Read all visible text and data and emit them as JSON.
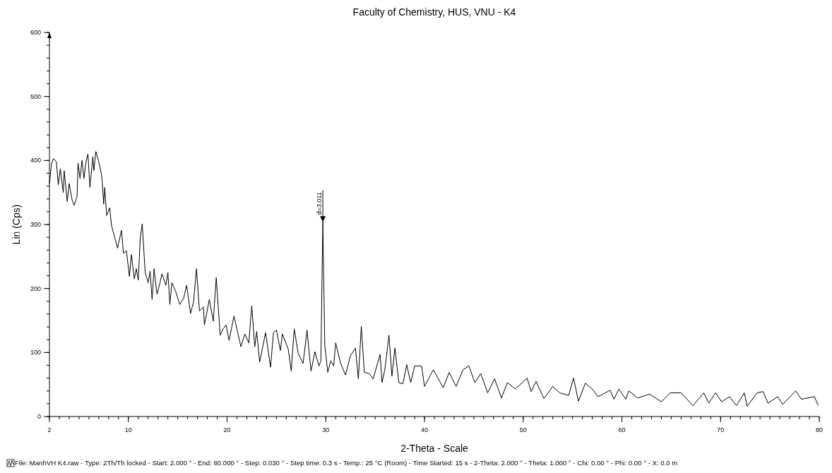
{
  "chart_data": {
    "type": "line",
    "title": "Faculty of Chemistry, HUS, VNU - K4",
    "xlabel": "2-Theta - Scale",
    "ylabel": "Lin (Cps)",
    "x": [
      2.0,
      2.2,
      2.4,
      2.7,
      2.9,
      3.1,
      3.4,
      3.5,
      3.8,
      4.0,
      4.3,
      4.5,
      4.8,
      4.9,
      5.1,
      5.3,
      5.5,
      5.7,
      5.9,
      6.1,
      6.4,
      6.5,
      6.7,
      7.0,
      7.3,
      7.5,
      7.6,
      7.8,
      8.1,
      8.3,
      8.9,
      9.3,
      9.5,
      9.8,
      10.1,
      10.3,
      10.6,
      10.8,
      11.0,
      11.2,
      11.4,
      11.7,
      12.0,
      12.2,
      12.4,
      12.6,
      12.9,
      13.2,
      13.4,
      13.8,
      14.0,
      14.2,
      14.4,
      14.8,
      15.2,
      15.6,
      15.9,
      16.3,
      16.6,
      16.9,
      17.2,
      17.6,
      17.7,
      18.2,
      18.6,
      18.9,
      19.3,
      19.6,
      19.9,
      20.2,
      20.7,
      21.4,
      21.8,
      22.2,
      22.5,
      22.8,
      23.0,
      23.3,
      23.9,
      24.4,
      24.7,
      25.0,
      25.4,
      25.6,
      26.2,
      26.5,
      26.8,
      27.2,
      27.7,
      28.1,
      28.5,
      28.9,
      29.3,
      29.5,
      29.7,
      29.9,
      30.2,
      30.5,
      30.8,
      31.0,
      31.5,
      32.0,
      32.5,
      33.0,
      33.3,
      33.6,
      33.9,
      34.4,
      34.8,
      35.5,
      35.7,
      36.0,
      36.4,
      36.7,
      37.0,
      37.4,
      37.8,
      38.2,
      38.6,
      39.0,
      39.7,
      40.0,
      40.9,
      41.9,
      42.5,
      43.2,
      43.9,
      44.5,
      45.1,
      45.7,
      46.4,
      47.1,
      47.8,
      48.4,
      49.2,
      50.4,
      50.8,
      51.3,
      52.1,
      53.0,
      53.7,
      54.6,
      55.1,
      55.6,
      56.3,
      57.0,
      57.6,
      58.8,
      59.2,
      59.7,
      60.4,
      60.7,
      61.6,
      62.8,
      64.0,
      64.9,
      66.0,
      67.2,
      68.3,
      68.8,
      69.5,
      70.1,
      70.9,
      71.6,
      72.4,
      72.7,
      73.7,
      74.3,
      74.8,
      75.8,
      76.3,
      77.6,
      78.2,
      79.5,
      79.9
    ],
    "series": [
      {
        "color": "#000000",
        "values": [
          364,
          394,
          403,
          398,
          362,
          387,
          350,
          384,
          336,
          364,
          338,
          330,
          344,
          396,
          372,
          400,
          372,
          398,
          410,
          358,
          406,
          384,
          414,
          398,
          376,
          332,
          358,
          314,
          326,
          298,
          263,
          291,
          255,
          259,
          219,
          253,
          215,
          231,
          213,
          279,
          301,
          225,
          209,
          227,
          183,
          231,
          191,
          209,
          223,
          205,
          225,
          175,
          209,
          195,
          175,
          185,
          205,
          161,
          179,
          231,
          165,
          171,
          143,
          183,
          149,
          217,
          127,
          137,
          143,
          119,
          157,
          109,
          129,
          115,
          173,
          109,
          133,
          85,
          131,
          77,
          131,
          135,
          103,
          129,
          105,
          71,
          137,
          99,
          83,
          135,
          71,
          101,
          79,
          87,
          304,
          111,
          69,
          87,
          79,
          115,
          83,
          65,
          95,
          107,
          59,
          141,
          69,
          67,
          59,
          97,
          53,
          75,
          127,
          63,
          107,
          53,
          51,
          81,
          53,
          79,
          79,
          47,
          73,
          45,
          69,
          47,
          73,
          79,
          53,
          67,
          37,
          59,
          29,
          53,
          43,
          60,
          39,
          55,
          28,
          47,
          37,
          33,
          60,
          24,
          52,
          43,
          31,
          41,
          27,
          43,
          27,
          40,
          29,
          35,
          23,
          37,
          37,
          17,
          37,
          21,
          37,
          23,
          31,
          17,
          37,
          16,
          37,
          39,
          21,
          31,
          19,
          40,
          27,
          31,
          17
        ]
      }
    ],
    "xlim": [
      2,
      80
    ],
    "xticks": [
      2,
      10,
      20,
      30,
      40,
      50,
      60,
      70,
      80
    ],
    "ylim": [
      0,
      600
    ],
    "yticks": [
      0,
      100,
      200,
      300,
      400,
      500,
      600
    ],
    "annotations": [
      {
        "text": "d=3.011",
        "x": 29.7,
        "y": 304
      },
      "File: ManhVH K4.raw - Type: 2Th/Th locked - Start: 2.000 ° - End: 80.000 ° - Step: 0.030 ° - Step time: 0.3 s - Temp.: 25 °C (Room) - Time Started: 15 s - 2-Theta: 2.000 ° - Theta: 1.000 ° - Chi: 0.00 ° - Phi: 0.00 ° - X: 0.0 m"
    ]
  }
}
